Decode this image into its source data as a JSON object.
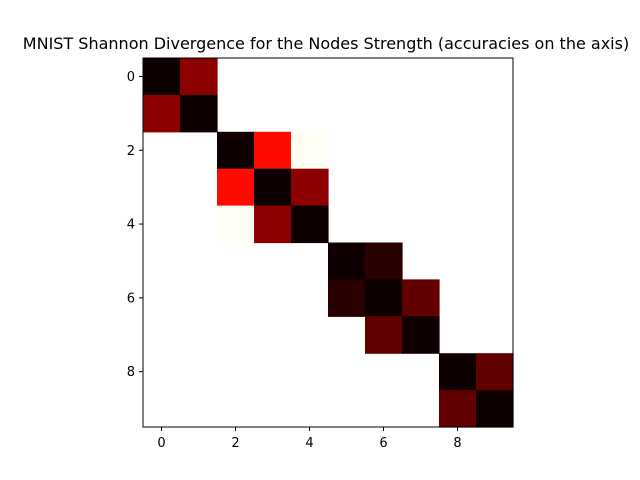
{
  "chart_data": {
    "type": "heatmap",
    "title": "MNIST Shannon Divergence for the Nodes Strength (accuracies on the axis)",
    "xlabel": "",
    "ylabel": "",
    "x": [
      0,
      1,
      2,
      3,
      4,
      5,
      6,
      7,
      8,
      9
    ],
    "y": [
      0,
      1,
      2,
      3,
      4,
      5,
      6,
      7,
      8,
      9
    ],
    "x_ticks": [
      0,
      2,
      4,
      6,
      8
    ],
    "y_ticks": [
      0,
      2,
      4,
      6,
      8
    ],
    "xlim": [
      -0.5,
      9.5
    ],
    "ylim": [
      9.5,
      -0.5
    ],
    "colormap": "hot",
    "value_range": [
      0,
      1
    ],
    "grid": false,
    "legend": "none",
    "values": [
      [
        0.02,
        0.2,
        null,
        null,
        null,
        null,
        null,
        null,
        null,
        null
      ],
      [
        0.2,
        0.02,
        null,
        null,
        null,
        null,
        null,
        null,
        null,
        null
      ],
      [
        null,
        null,
        0.02,
        0.38,
        0.99,
        null,
        null,
        null,
        null,
        null
      ],
      [
        null,
        null,
        0.38,
        0.02,
        0.2,
        null,
        null,
        null,
        null,
        null
      ],
      [
        null,
        null,
        0.99,
        0.2,
        0.02,
        null,
        null,
        null,
        null,
        null
      ],
      [
        null,
        null,
        null,
        null,
        null,
        0.02,
        0.06,
        null,
        null,
        null
      ],
      [
        null,
        null,
        null,
        null,
        null,
        0.06,
        0.02,
        0.14,
        null,
        null
      ],
      [
        null,
        null,
        null,
        null,
        null,
        null,
        0.14,
        0.02,
        null,
        null
      ],
      [
        null,
        null,
        null,
        null,
        null,
        null,
        null,
        null,
        0.02,
        0.14
      ],
      [
        null,
        null,
        null,
        null,
        null,
        null,
        null,
        null,
        0.14,
        0.02
      ]
    ]
  }
}
